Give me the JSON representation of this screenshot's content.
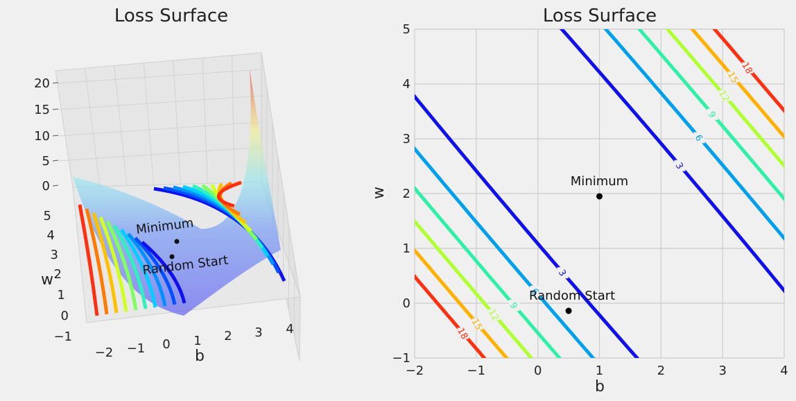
{
  "chart_data": [
    {
      "type": "surface3d",
      "title": "Loss Surface",
      "xlabel": "b",
      "ylabel": "w",
      "zlabel": "",
      "x_ticks": [
        -2,
        -1,
        0,
        1,
        2,
        3,
        4
      ],
      "y_ticks": [
        -1,
        0,
        1,
        2,
        3,
        4,
        5
      ],
      "z_ticks": [
        0,
        5,
        10,
        15,
        20
      ],
      "xlim": [
        -2.5,
        4.5
      ],
      "ylim": [
        -1.2,
        5.2
      ],
      "zlim": [
        0,
        22
      ],
      "colormap": "jet",
      "points": [
        {
          "name": "Minimum",
          "b": 1.0,
          "w": 2.0
        },
        {
          "name": "Random Start",
          "b": 0.5,
          "w": -0.15
        }
      ]
    },
    {
      "type": "contour",
      "title": "Loss Surface",
      "xlabel": "b",
      "ylabel": "w",
      "xlim": [
        -2,
        4
      ],
      "ylim": [
        -1,
        5
      ],
      "x_ticks": [
        -2,
        -1,
        0,
        1,
        2,
        3,
        4
      ],
      "y_ticks": [
        -1,
        0,
        1,
        2,
        3,
        4,
        5
      ],
      "grid": true,
      "levels": [
        3,
        6,
        9,
        12,
        15,
        18
      ],
      "level_colors": [
        "#1010ee",
        "#00a0ee",
        "#30f0a8",
        "#b0ff30",
        "#ffb000",
        "#ff3010"
      ],
      "points": [
        {
          "name": "Minimum",
          "b": 1.0,
          "w": 1.95
        },
        {
          "name": "Random Start",
          "b": 0.5,
          "w": -0.14
        }
      ]
    }
  ]
}
